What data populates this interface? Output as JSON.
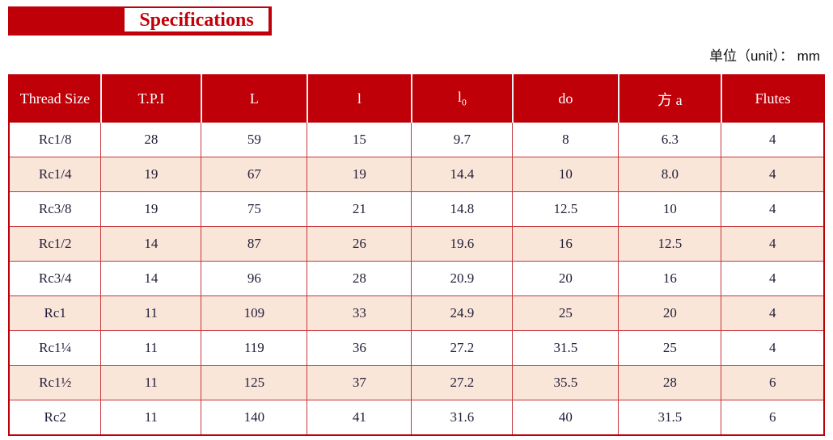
{
  "page": {
    "title": "Specifications",
    "unit_note": "单位（unit）： mm"
  },
  "colors": {
    "brand_red": "#c00008",
    "row_alt_pink": "#fae5d9",
    "header_text": "#ffffff",
    "body_text": "#23203a",
    "cell_border": "#c5373c"
  },
  "table": {
    "columns": [
      {
        "key": "thread-size",
        "label": "Thread Size"
      },
      {
        "key": "tpi",
        "label": "T.P.I"
      },
      {
        "key": "L",
        "label": "L"
      },
      {
        "key": "l",
        "label": "l"
      },
      {
        "key": "l0",
        "label": "l",
        "sub": "0"
      },
      {
        "key": "do",
        "label": "do"
      },
      {
        "key": "fang-a",
        "label": "方 a"
      },
      {
        "key": "flutes",
        "label": "Flutes"
      }
    ],
    "rows": [
      {
        "cells": [
          "Rc1/8",
          "28",
          "59",
          "15",
          "9.7",
          "8",
          "6.3",
          "4"
        ]
      },
      {
        "cells": [
          "Rc1/4",
          "19",
          "67",
          "19",
          "14.4",
          "10",
          "8.0",
          "4"
        ]
      },
      {
        "cells": [
          "Rc3/8",
          "19",
          "75",
          "21",
          "14.8",
          "12.5",
          "10",
          "4"
        ]
      },
      {
        "cells": [
          "Rc1/2",
          "14",
          "87",
          "26",
          "19.6",
          "16",
          "12.5",
          "4"
        ]
      },
      {
        "cells": [
          "Rc3/4",
          "14",
          "96",
          "28",
          "20.9",
          "20",
          "16",
          "4"
        ]
      },
      {
        "cells": [
          "Rc1",
          "11",
          "109",
          "33",
          "24.9",
          "25",
          "20",
          "4"
        ]
      },
      {
        "cells": [
          "Rc1¼",
          "11",
          "119",
          "36",
          "27.2",
          "31.5",
          "25",
          "4"
        ]
      },
      {
        "cells": [
          "Rc1½",
          "11",
          "125",
          "37",
          "27.2",
          "35.5",
          "28",
          "6"
        ]
      },
      {
        "cells": [
          "Rc2",
          "11",
          "140",
          "41",
          "31.6",
          "40",
          "31.5",
          "6"
        ]
      }
    ]
  }
}
